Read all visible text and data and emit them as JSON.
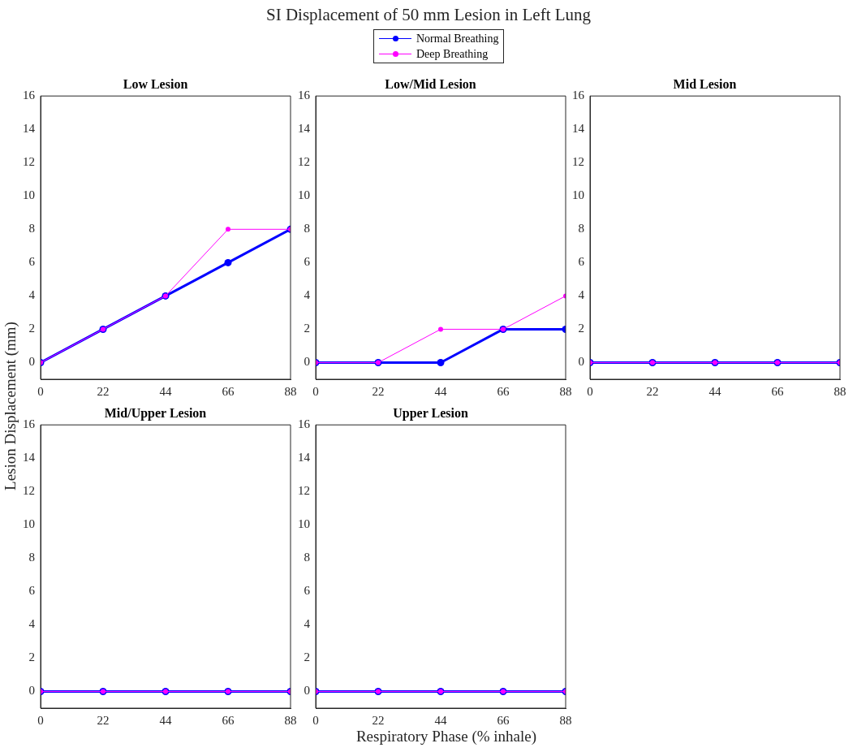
{
  "chart_data": [
    {
      "type": "line",
      "title": "Low Lesion",
      "annotations": [
        "SI Displacement of 50 mm Lesion in Left Lung"
      ],
      "ylabel": "Lesion Displacement (mm)",
      "legend": "top",
      "marker": "circle",
      "grid": false,
      "x": [
        0,
        22,
        44,
        66,
        88
      ],
      "xlim": [
        0,
        88
      ],
      "xticks": [
        0,
        22,
        44,
        66,
        88
      ],
      "ylim": [
        -1,
        16
      ],
      "yticks": [
        0,
        2,
        4,
        6,
        8,
        10,
        12,
        14,
        16
      ],
      "series": [
        {
          "name": "Normal Breathing",
          "color": "#0000ff",
          "values": [
            0,
            2,
            4,
            6,
            8
          ]
        },
        {
          "name": "Deep Breathing",
          "color": "#ff00ff",
          "values": [
            0,
            2,
            4,
            8,
            8
          ]
        }
      ]
    },
    {
      "type": "line",
      "title": "Low/Mid Lesion",
      "marker": "circle",
      "grid": false,
      "x": [
        0,
        22,
        44,
        66,
        88
      ],
      "xlim": [
        0,
        88
      ],
      "xticks": [
        0,
        22,
        44,
        66,
        88
      ],
      "ylim": [
        -1,
        16
      ],
      "yticks": [
        0,
        2,
        4,
        6,
        8,
        10,
        12,
        14,
        16
      ],
      "series": [
        {
          "color": "#0000ff",
          "values": [
            0,
            0,
            0,
            2,
            2
          ]
        },
        {
          "color": "#ff00ff",
          "values": [
            0,
            0,
            2,
            2,
            4
          ]
        }
      ]
    },
    {
      "type": "line",
      "title": "Mid Lesion",
      "marker": "circle",
      "grid": false,
      "x": [
        0,
        22,
        44,
        66,
        88
      ],
      "xlim": [
        0,
        88
      ],
      "xticks": [
        0,
        22,
        44,
        66,
        88
      ],
      "ylim": [
        -1,
        16
      ],
      "yticks": [
        0,
        2,
        4,
        6,
        8,
        10,
        12,
        14,
        16
      ],
      "series": [
        {
          "color": "#0000ff",
          "values": [
            0,
            0,
            0,
            0,
            0
          ]
        },
        {
          "color": "#ff00ff",
          "values": [
            0,
            0,
            0,
            0,
            0
          ]
        }
      ]
    },
    {
      "type": "line",
      "title": "Mid/Upper Lesion",
      "marker": "circle",
      "grid": false,
      "x": [
        0,
        22,
        44,
        66,
        88
      ],
      "xlim": [
        0,
        88
      ],
      "xticks": [
        0,
        22,
        44,
        66,
        88
      ],
      "ylim": [
        -1,
        16
      ],
      "yticks": [
        0,
        2,
        4,
        6,
        8,
        10,
        12,
        14,
        16
      ],
      "series": [
        {
          "color": "#0000ff",
          "values": [
            0,
            0,
            0,
            0,
            0
          ]
        },
        {
          "color": "#ff00ff",
          "values": [
            0,
            0,
            0,
            0,
            0
          ]
        }
      ]
    },
    {
      "type": "line",
      "title": "Upper Lesion",
      "xlabel": "Respiratory Phase (% inhale)",
      "marker": "circle",
      "grid": false,
      "x": [
        0,
        22,
        44,
        66,
        88
      ],
      "xlim": [
        0,
        88
      ],
      "xticks": [
        0,
        22,
        44,
        66,
        88
      ],
      "ylim": [
        -1,
        16
      ],
      "yticks": [
        0,
        2,
        4,
        6,
        8,
        10,
        12,
        14,
        16
      ],
      "series": [
        {
          "color": "#0000ff",
          "values": [
            0,
            0,
            0,
            0,
            0
          ]
        },
        {
          "color": "#ff00ff",
          "values": [
            0,
            0,
            0,
            0,
            0
          ]
        }
      ]
    }
  ]
}
